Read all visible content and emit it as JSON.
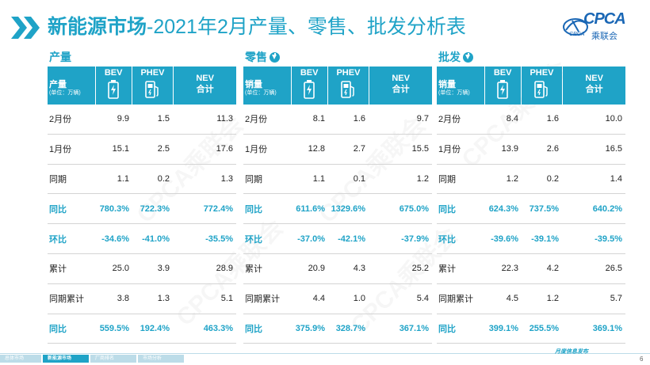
{
  "header": {
    "title_bold": "新能源市场",
    "title_rest": "-2021年2月产量、零售、批发分析表",
    "logo_text": "CPCA",
    "logo_sub": "乘联会",
    "logo_mini": "CPCA"
  },
  "panels": [
    {
      "label": "产量",
      "has_arrow": false,
      "col_head": {
        "main": "产量",
        "unit": "(单位：万辆)",
        "bev": "BEV",
        "phev": "PHEV",
        "nev1": "NEV",
        "nev2": "合计"
      },
      "rows": [
        {
          "label": "2月份",
          "bev": "9.9",
          "phev": "1.5",
          "nev": "11.3",
          "hl": false
        },
        {
          "label": "1月份",
          "bev": "15.1",
          "phev": "2.5",
          "nev": "17.6",
          "hl": false
        },
        {
          "label": "同期",
          "bev": "1.1",
          "phev": "0.2",
          "nev": "1.3",
          "hl": false
        },
        {
          "label": "同比",
          "bev": "780.3%",
          "phev": "722.3%",
          "nev": "772.4%",
          "hl": true
        },
        {
          "label": "环比",
          "bev": "-34.6%",
          "phev": "-41.0%",
          "nev": "-35.5%",
          "hl": true
        },
        {
          "label": "累计",
          "bev": "25.0",
          "phev": "3.9",
          "nev": "28.9",
          "hl": false
        },
        {
          "label": "同期累计",
          "bev": "3.8",
          "phev": "1.3",
          "nev": "5.1",
          "hl": false
        },
        {
          "label": "同比",
          "bev": "559.5%",
          "phev": "192.4%",
          "nev": "463.3%",
          "hl": true
        }
      ]
    },
    {
      "label": "零售",
      "has_arrow": true,
      "col_head": {
        "main": "销量",
        "unit": "(单位：万辆)",
        "bev": "BEV",
        "phev": "PHEV",
        "nev1": "NEV",
        "nev2": "合计"
      },
      "rows": [
        {
          "label": "2月份",
          "bev": "8.1",
          "phev": "1.6",
          "nev": "9.7",
          "hl": false
        },
        {
          "label": "1月份",
          "bev": "12.8",
          "phev": "2.7",
          "nev": "15.5",
          "hl": false
        },
        {
          "label": "同期",
          "bev": "1.1",
          "phev": "0.1",
          "nev": "1.2",
          "hl": false
        },
        {
          "label": "同比",
          "bev": "611.6%",
          "phev": "1329.6%",
          "nev": "675.0%",
          "hl": true
        },
        {
          "label": "环比",
          "bev": "-37.0%",
          "phev": "-42.1%",
          "nev": "-37.9%",
          "hl": true
        },
        {
          "label": "累计",
          "bev": "20.9",
          "phev": "4.3",
          "nev": "25.2",
          "hl": false
        },
        {
          "label": "同期累计",
          "bev": "4.4",
          "phev": "1.0",
          "nev": "5.4",
          "hl": false
        },
        {
          "label": "同比",
          "bev": "375.9%",
          "phev": "328.7%",
          "nev": "367.1%",
          "hl": true
        }
      ]
    },
    {
      "label": "批发",
      "has_arrow": true,
      "col_head": {
        "main": "销量",
        "unit": "(单位：万辆)",
        "bev": "BEV",
        "phev": "PHEV",
        "nev1": "NEV",
        "nev2": "合计"
      },
      "rows": [
        {
          "label": "2月份",
          "bev": "8.4",
          "phev": "1.6",
          "nev": "10.0",
          "hl": false
        },
        {
          "label": "1月份",
          "bev": "13.9",
          "phev": "2.6",
          "nev": "16.5",
          "hl": false
        },
        {
          "label": "同期",
          "bev": "1.2",
          "phev": "0.2",
          "nev": "1.4",
          "hl": false
        },
        {
          "label": "同比",
          "bev": "624.3%",
          "phev": "737.5%",
          "nev": "640.2%",
          "hl": true
        },
        {
          "label": "环比",
          "bev": "-39.6%",
          "phev": "-39.1%",
          "nev": "-39.5%",
          "hl": true
        },
        {
          "label": "累计",
          "bev": "22.3",
          "phev": "4.2",
          "nev": "26.5",
          "hl": false
        },
        {
          "label": "同期累计",
          "bev": "4.5",
          "phev": "1.2",
          "nev": "5.7",
          "hl": false
        },
        {
          "label": "同比",
          "bev": "399.1%",
          "phev": "255.5%",
          "nev": "369.1%",
          "hl": true
        }
      ]
    }
  ],
  "footer": {
    "tabs": [
      "总体市场",
      "新能源市场",
      "厂商排名",
      "市场分析"
    ],
    "active_tab": 1,
    "right_text": "月度信息发布",
    "page": "6"
  },
  "watermark": "CPCA乘联会",
  "colors": {
    "accent": "#1fa3c7",
    "logo": "#1a67b5"
  }
}
